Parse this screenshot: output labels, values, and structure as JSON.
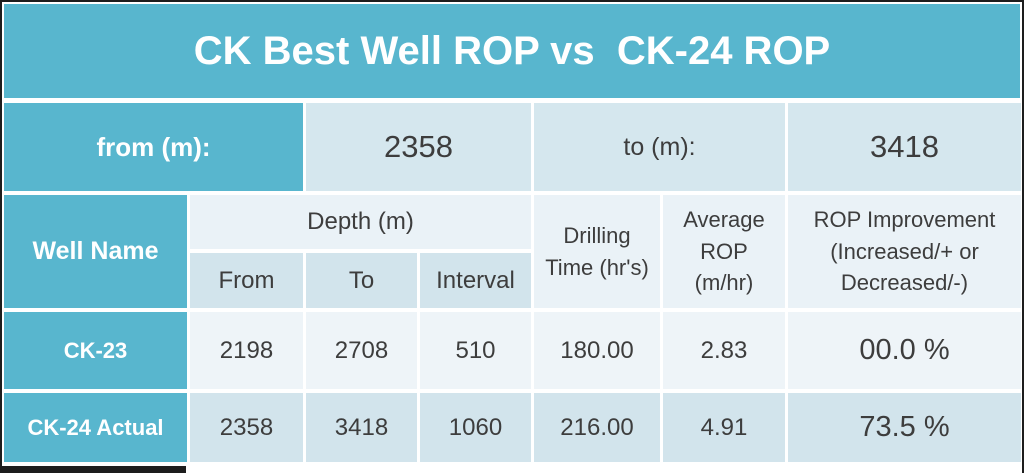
{
  "title": "CK Best Well ROP vs  CK-24 ROP",
  "colors": {
    "teal": "#58b6ce",
    "row2-light": "#d5e7ee",
    "subheader": "#d2e4ec",
    "header-light": "#eaf2f7",
    "ck23-bg": "#eef4f8",
    "ck24-bg": "#d2e4ec",
    "ink": "#3d3d3d",
    "frame-border": "#1d1d1d"
  },
  "range_row": {
    "from_label": "from (m):",
    "from_value": "2358",
    "to_label": "to (m):",
    "to_value": "3418"
  },
  "table": {
    "well_name_header": "Well Name",
    "depth_header": "Depth (m)",
    "sub_headers": {
      "from": "From",
      "to": "To",
      "interval": "Interval"
    },
    "drilling_time_header": "Drilling Time (hr's)",
    "average_rop_header": "Average ROP (m/hr)",
    "rop_improvement_header": "ROP Improvement (Increased/+ or Decreased/-)",
    "rows": [
      {
        "well": "CK-23",
        "from": "2198",
        "to": "2708",
        "interval": "510",
        "drilling_time": "180.00",
        "average_rop": "2.83",
        "rop_improvement": "00.0 %"
      },
      {
        "well": "CK-24 Actual",
        "from": "2358",
        "to": "3418",
        "interval": "1060",
        "drilling_time": "216.00",
        "average_rop": "4.91",
        "rop_improvement": "73.5 %"
      }
    ]
  }
}
